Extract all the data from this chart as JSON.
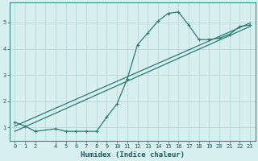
{
  "xlabel": "Humidex (Indice chaleur)",
  "ylabel": "",
  "bg_color": "#d8eff0",
  "grid_color": "#b8d8da",
  "line_color": "#2a7a72",
  "xlim": [
    -0.5,
    23.5
  ],
  "ylim": [
    0.5,
    5.75
  ],
  "yticks": [
    1,
    2,
    3,
    4,
    5
  ],
  "xticks": [
    0,
    1,
    2,
    4,
    5,
    6,
    7,
    8,
    9,
    10,
    11,
    12,
    13,
    14,
    15,
    16,
    17,
    18,
    19,
    20,
    21,
    22,
    23
  ],
  "xgrid_ticks": [
    0,
    1,
    2,
    3,
    4,
    5,
    6,
    7,
    8,
    9,
    10,
    11,
    12,
    13,
    14,
    15,
    16,
    17,
    18,
    19,
    20,
    21,
    22,
    23
  ],
  "line1_x": [
    0,
    1,
    2,
    4,
    5,
    6,
    7,
    8,
    9,
    10,
    11,
    12,
    13,
    14,
    15,
    16,
    17,
    18,
    19,
    20,
    21,
    22,
    23
  ],
  "line1_y": [
    1.2,
    1.05,
    0.85,
    0.95,
    0.85,
    0.85,
    0.85,
    0.85,
    1.4,
    1.9,
    2.85,
    4.15,
    4.6,
    5.05,
    5.35,
    5.4,
    4.9,
    4.35,
    4.35,
    4.4,
    4.55,
    4.85,
    4.9
  ],
  "line2_x": [
    0,
    23
  ],
  "line2_y": [
    0.85,
    4.85
  ],
  "line3_x": [
    0,
    23
  ],
  "line3_y": [
    1.05,
    4.98
  ],
  "figsize": [
    3.2,
    2.0
  ],
  "dpi": 100,
  "tick_fontsize": 5.0,
  "xlabel_fontsize": 6.5
}
